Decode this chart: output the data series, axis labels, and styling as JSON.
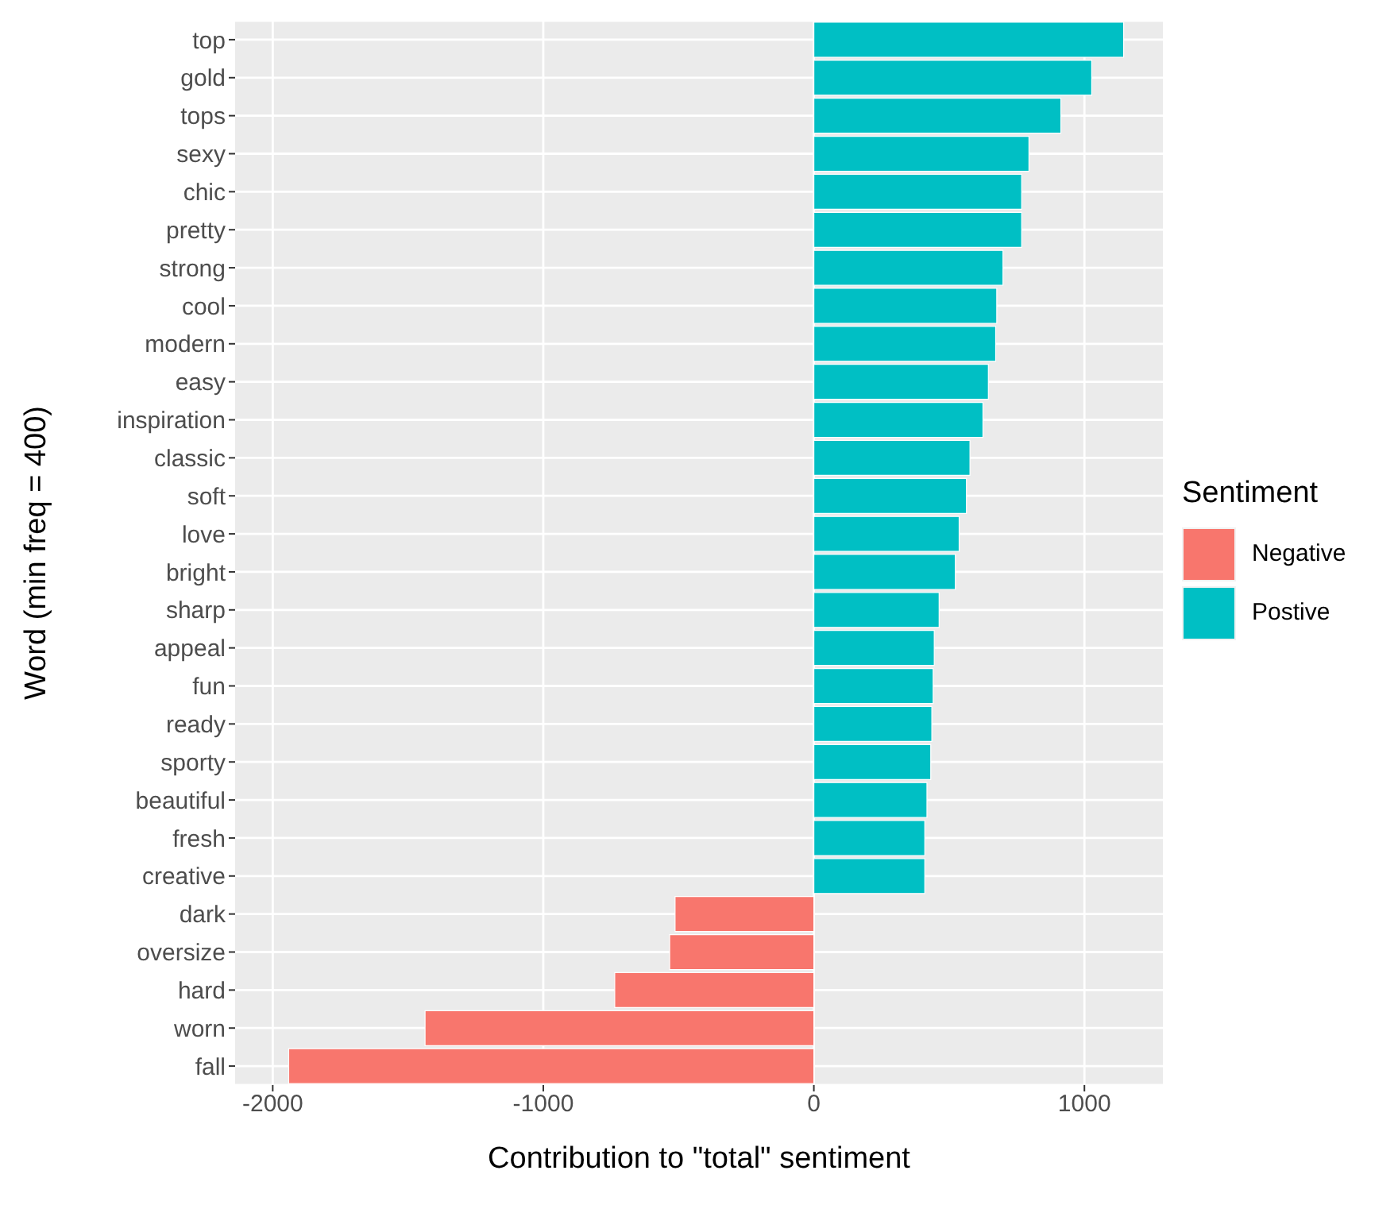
{
  "chart_data": {
    "type": "bar",
    "orientation": "horizontal",
    "stacked": true,
    "xlabel": "Contribution to \"total\" sentiment",
    "ylabel": "Word (min freq = 400)",
    "legend_title": "Sentiment",
    "categories": [
      "top",
      "gold",
      "tops",
      "sexy",
      "chic",
      "pretty",
      "strong",
      "cool",
      "modern",
      "easy",
      "inspiration",
      "classic",
      "soft",
      "love",
      "bright",
      "sharp",
      "appeal",
      "fun",
      "ready",
      "sporty",
      "beautiful",
      "fresh",
      "creative",
      "dark",
      "oversize",
      "hard",
      "worn",
      "fall"
    ],
    "series": [
      {
        "name": "Negative",
        "color": "#f8766d",
        "values": [
          null,
          null,
          null,
          null,
          null,
          null,
          null,
          null,
          null,
          null,
          null,
          null,
          null,
          null,
          null,
          null,
          null,
          null,
          null,
          null,
          null,
          null,
          null,
          -513,
          -533,
          -736,
          -1437,
          -1941
        ]
      },
      {
        "name": "Postive",
        "color": "#00bfc4",
        "values": [
          1145,
          1027,
          913,
          795,
          768,
          768,
          699,
          676,
          672,
          645,
          625,
          577,
          564,
          537,
          523,
          463,
          445,
          441,
          436,
          432,
          418,
          410,
          410,
          null,
          null,
          null,
          null,
          null
        ]
      }
    ],
    "xlim": [
      -2139,
      1290
    ],
    "xticks": [
      -2000,
      -1000,
      0,
      1000
    ],
    "grid": true,
    "legend": "right"
  }
}
